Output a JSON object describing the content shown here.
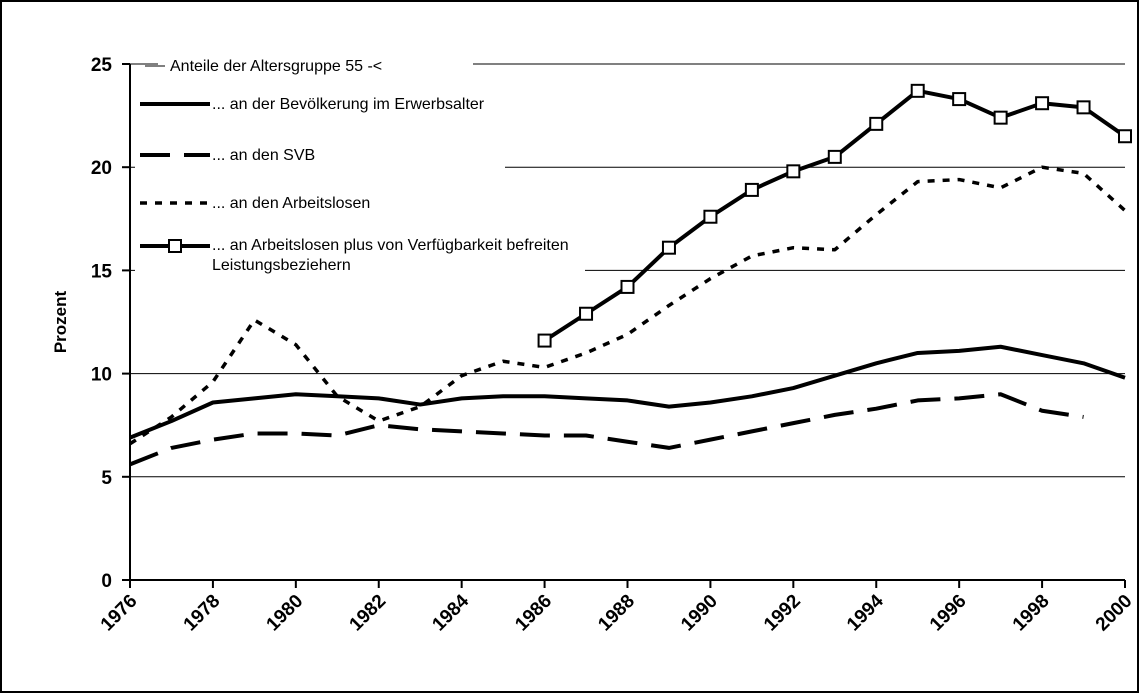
{
  "chart_data": {
    "type": "line",
    "legend_title": "Anteile der Altersgruppe 55 -<",
    "y_label": "Prozent",
    "x": [
      1976,
      1977,
      1978,
      1979,
      1980,
      1981,
      1982,
      1983,
      1984,
      1985,
      1986,
      1987,
      1988,
      1989,
      1990,
      1991,
      1992,
      1993,
      1994,
      1995,
      1996,
      1997,
      1998,
      1999,
      2000
    ],
    "xlim": [
      1976,
      2000
    ],
    "xticks": [
      1976,
      1978,
      1980,
      1982,
      1984,
      1986,
      1988,
      1990,
      1992,
      1994,
      1996,
      1998,
      2000
    ],
    "ylim": [
      0,
      25
    ],
    "yticks": [
      0,
      5,
      10,
      15,
      20,
      25
    ],
    "grid": true,
    "series": [
      {
        "name": "... an der Bevölkerung im Erwerbsalter",
        "color": "#000000",
        "style": "solid",
        "values": [
          6.9,
          7.7,
          8.6,
          8.8,
          9.0,
          8.9,
          8.8,
          8.5,
          8.8,
          8.9,
          8.9,
          8.8,
          8.7,
          8.4,
          8.6,
          8.9,
          9.3,
          9.9,
          10.5,
          11.0,
          11.1,
          11.3,
          10.9,
          10.5,
          9.8
        ]
      },
      {
        "name": "... an den SVB",
        "color": "#000000",
        "style": "dashed",
        "values": [
          5.6,
          6.4,
          6.8,
          7.1,
          7.1,
          7.0,
          7.5,
          7.3,
          7.2,
          7.1,
          7.0,
          7.0,
          6.7,
          6.4,
          6.8,
          7.2,
          7.6,
          8.0,
          8.3,
          8.7,
          8.8,
          9.0,
          8.2,
          7.9,
          null
        ]
      },
      {
        "name": "... an den Arbeitslosen",
        "color": "#000000",
        "style": "dotted",
        "values": [
          6.6,
          7.9,
          9.6,
          12.6,
          11.4,
          8.9,
          7.7,
          8.4,
          9.9,
          10.6,
          10.3,
          11.0,
          11.9,
          13.3,
          14.6,
          15.7,
          16.1,
          16.0,
          17.7,
          19.3,
          19.4,
          19.0,
          20.0,
          19.7,
          17.9
        ]
      },
      {
        "name": "... an Arbeitslosen plus von Verfügbarkeit befreiten Leistungsbeziehern",
        "color": "#000000",
        "style": "solid",
        "marker": "square",
        "values": [
          null,
          null,
          null,
          null,
          null,
          null,
          null,
          null,
          null,
          null,
          11.6,
          12.9,
          14.2,
          16.1,
          17.6,
          18.9,
          19.8,
          20.5,
          22.1,
          23.7,
          23.3,
          22.4,
          23.1,
          22.9,
          21.5
        ]
      }
    ]
  }
}
